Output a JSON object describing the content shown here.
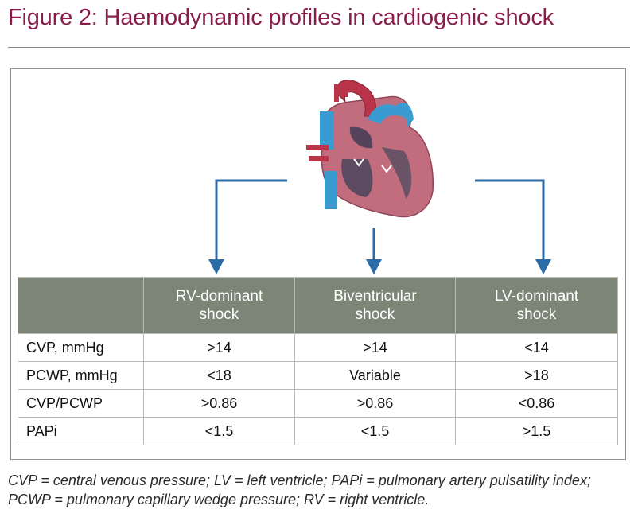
{
  "figure": {
    "title": "Figure 2: Haemodynamic profiles in cardiogenic shock"
  },
  "colors": {
    "title": "#8a1e4a",
    "arrow": "#2b6ca7",
    "table_header_bg": "#7c8676",
    "heart_muscle": "#c26d7e",
    "heart_vessel_blue": "#3a9bd1",
    "heart_vessel_red": "#b93448"
  },
  "diagram": {
    "heart_icon": "heart-cross-section-icon",
    "arrow_icon": "down-arrow-icon"
  },
  "table": {
    "columns": [
      {
        "line1": "RV-dominant",
        "line2": "shock"
      },
      {
        "line1": "Biventricular",
        "line2": "shock"
      },
      {
        "line1": "LV-dominant",
        "line2": "shock"
      }
    ],
    "rows": [
      {
        "label": "CVP, mmHg",
        "values": [
          ">14",
          ">14",
          "<14"
        ]
      },
      {
        "label": "PCWP, mmHg",
        "values": [
          "<18",
          "Variable",
          ">18"
        ]
      },
      {
        "label": "CVP/PCWP",
        "values": [
          ">0.86",
          ">0.86",
          "<0.86"
        ]
      },
      {
        "label": "PAPi",
        "values": [
          "<1.5",
          "<1.5",
          ">1.5"
        ]
      }
    ]
  },
  "caption": "CVP = central venous pressure; LV = left ventricle; PAPi = pulmonary artery pulsatility index; PCWP = pulmonary capillary wedge pressure; RV = right ventricle."
}
